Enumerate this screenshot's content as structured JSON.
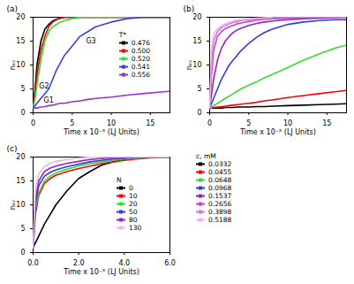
{
  "chart_data": [
    {
      "type": "line",
      "title": "(a)",
      "x_label": "Time x 10⁻⁵ (LJ Units)",
      "y_label": "nₐᵥ",
      "legend_title": "T*",
      "xlim": [
        0,
        17.5
      ],
      "xticks": [
        0,
        5,
        10,
        15
      ],
      "ylim": [
        0,
        20
      ],
      "yticks": [
        0,
        5,
        10,
        15,
        20
      ],
      "grid": false,
      "x": [
        0,
        0.25,
        0.5,
        1,
        1.5,
        2,
        2.5,
        3,
        3.5,
        4,
        5,
        6,
        7,
        8,
        10,
        12,
        14,
        16,
        17.5
      ],
      "series": [
        {
          "name": "0.476",
          "color": "#000000",
          "values": [
            1,
            5,
            10,
            15,
            17.5,
            18.5,
            19.2,
            19.6,
            19.8,
            20,
            20,
            20,
            20,
            20,
            20,
            20,
            20,
            20,
            20
          ]
        },
        {
          "name": "0.500",
          "color": "#ff0000",
          "values": [
            1,
            4,
            8,
            13,
            16,
            18,
            19,
            19.5,
            19.8,
            20,
            20,
            20,
            20,
            20,
            20,
            20,
            20,
            20,
            20
          ]
        },
        {
          "name": "0.520",
          "color": "#33dd33",
          "values": [
            1,
            3,
            6,
            11,
            15,
            17,
            18,
            18.5,
            19,
            19.3,
            19.7,
            20,
            20,
            20,
            20,
            20,
            20,
            20,
            20
          ]
        },
        {
          "name": "0.541",
          "color": "#3344dd",
          "values": [
            1,
            1.5,
            2,
            3,
            4,
            5,
            7,
            9,
            10.5,
            12,
            14,
            16,
            17,
            18,
            19,
            19.7,
            20,
            20,
            20
          ]
        },
        {
          "name": "0.556",
          "color": "#9933cc",
          "values": [
            1,
            1,
            1,
            1.2,
            1.3,
            1.5,
            1.6,
            1.8,
            2,
            2,
            2.3,
            2.5,
            2.8,
            3,
            3.3,
            3.7,
            4,
            4.3,
            4.5
          ]
        }
      ],
      "annotations": [
        {
          "text": "G1",
          "x": 2,
          "y": 2.6
        },
        {
          "text": "G2",
          "x": 1.4,
          "y": 5.6
        },
        {
          "text": "G3",
          "x": 7.4,
          "y": 15
        }
      ]
    },
    {
      "type": "line",
      "title": "(b)",
      "x_label": "Time x 10⁻⁵ (LJ Units)",
      "y_label": "nₐᵥ",
      "legend_title": "c, mM",
      "xlim": [
        0,
        17.5
      ],
      "xticks": [
        0,
        5,
        10,
        15
      ],
      "ylim": [
        0,
        20
      ],
      "yticks": [
        0,
        5,
        10,
        15,
        20
      ],
      "grid": false,
      "x": [
        0,
        0.25,
        0.5,
        1,
        1.5,
        2,
        2.5,
        3,
        3.5,
        4,
        5,
        6,
        7,
        8,
        10,
        12,
        14,
        16,
        17.5
      ],
      "series": [
        {
          "name": "0.0332",
          "color": "#000000",
          "values": [
            1,
            1,
            1,
            1,
            1,
            1.1,
            1.1,
            1.1,
            1.2,
            1.2,
            1.2,
            1.3,
            1.3,
            1.4,
            1.5,
            1.6,
            1.7,
            1.8,
            1.9
          ]
        },
        {
          "name": "0.0455",
          "color": "#ff0000",
          "values": [
            1,
            1,
            1.1,
            1.2,
            1.3,
            1.4,
            1.5,
            1.6,
            1.7,
            1.8,
            2,
            2.2,
            2.5,
            2.7,
            3.2,
            3.6,
            4,
            4.4,
            4.7
          ]
        },
        {
          "name": "0.0648",
          "color": "#33dd33",
          "values": [
            1,
            1.2,
            1.5,
            2,
            2.5,
            3,
            3.5,
            4,
            4.5,
            5,
            5.8,
            6.5,
            7.3,
            8,
            9.5,
            11,
            12.3,
            13.5,
            14.2
          ]
        },
        {
          "name": "0.0968",
          "color": "#2f3fdb",
          "values": [
            1,
            2,
            3,
            5,
            7,
            8.5,
            10,
            11,
            12,
            13,
            14.5,
            15.8,
            16.8,
            17.5,
            18.5,
            19,
            19.3,
            19.5,
            19.5
          ]
        },
        {
          "name": "0.1537",
          "color": "#9a1fc0",
          "values": [
            1,
            4,
            7,
            11,
            13.5,
            15,
            16,
            16.8,
            17.3,
            17.7,
            18.3,
            18.7,
            19,
            19.2,
            19.5,
            19.7,
            19.8,
            19.9,
            20
          ]
        },
        {
          "name": "0.2656",
          "color": "#c040e0",
          "values": [
            1,
            8,
            13,
            16,
            17,
            17.6,
            18,
            18.3,
            18.6,
            18.8,
            19.1,
            19.4,
            19.6,
            19.7,
            19.8,
            19.9,
            20,
            20,
            20
          ]
        },
        {
          "name": "0.3898",
          "color": "#cc77dd",
          "values": [
            1,
            11,
            15,
            17,
            17.8,
            18.3,
            18.6,
            18.9,
            19.1,
            19.3,
            19.5,
            19.7,
            19.8,
            19.9,
            20,
            20,
            20,
            20,
            20
          ]
        },
        {
          "name": "0.5188",
          "color": "#f0b0e8",
          "values": [
            1,
            13,
            16.5,
            17.5,
            18.2,
            18.6,
            18.9,
            19.2,
            19.4,
            19.5,
            19.7,
            19.8,
            19.9,
            20,
            null,
            null,
            null,
            null,
            null
          ]
        }
      ]
    },
    {
      "type": "line",
      "title": "(c)",
      "x_label": "Time x 10⁻⁵ (LJ Units)",
      "y_label": "nₐᵥ",
      "legend_title": "N",
      "xlim": [
        0,
        6
      ],
      "xticks": [
        0,
        2,
        4,
        6
      ],
      "ylim": [
        0,
        20
      ],
      "yticks": [
        0,
        5,
        10,
        15,
        20
      ],
      "grid": false,
      "x": [
        0,
        0.1,
        0.25,
        0.5,
        0.75,
        1,
        1.5,
        2,
        2.5,
        3,
        3.5,
        4,
        4.5,
        5,
        5.5,
        6
      ],
      "series": [
        {
          "name": "0",
          "color": "#000000",
          "values": [
            1,
            2,
            3.5,
            6,
            8,
            10,
            13,
            15.5,
            17,
            18.3,
            19,
            19.5,
            19.8,
            20,
            20,
            20
          ]
        },
        {
          "name": "10",
          "color": "#ff0000",
          "values": [
            1,
            8,
            12,
            14.5,
            15.5,
            16.2,
            17,
            17.6,
            18.1,
            18.6,
            19,
            19.3,
            19.6,
            19.8,
            20,
            20
          ]
        },
        {
          "name": "20",
          "color": "#33dd33",
          "values": [
            1,
            9,
            12.5,
            15,
            16,
            16.7,
            17.5,
            18.1,
            18.6,
            19,
            19.3,
            19.6,
            19.8,
            20,
            20,
            20
          ]
        },
        {
          "name": "50",
          "color": "#2f3fdb",
          "values": [
            1,
            10,
            14,
            16,
            16.8,
            17.3,
            18,
            18.5,
            19,
            19.3,
            19.6,
            19.8,
            20,
            20,
            20,
            20
          ]
        },
        {
          "name": "80",
          "color": "#9a1fc0",
          "values": [
            1,
            11,
            15,
            17,
            17.7,
            18.1,
            18.7,
            19.1,
            19.5,
            19.7,
            19.9,
            20,
            20,
            20,
            20,
            20
          ]
        },
        {
          "name": "130",
          "color": "#f0b0e8",
          "values": [
            1,
            13,
            16.5,
            18,
            18.7,
            19.1,
            19.5,
            19.8,
            20,
            20,
            20,
            20,
            20,
            20,
            20,
            20
          ]
        }
      ]
    }
  ]
}
